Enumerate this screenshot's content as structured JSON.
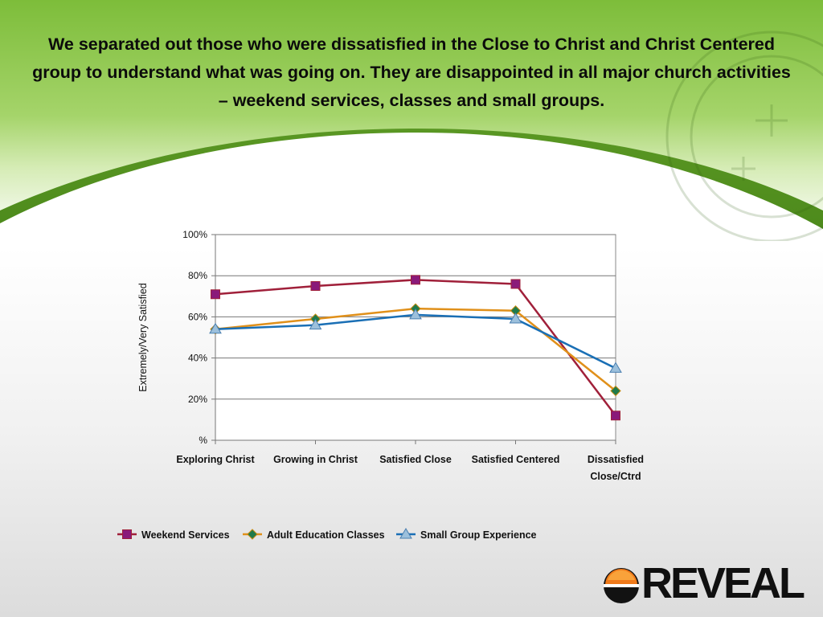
{
  "slide": {
    "title": "We separated out those who were dissatisfied in the Close to Christ and Christ Centered group to understand what was going on. They are disappointed in all major church activities – weekend services, classes and small groups.",
    "logo_text": "REVEAL",
    "colors": {
      "banner_green": "#7fbf3c",
      "banner_light": "#c8e6a0"
    }
  },
  "chart_data": {
    "type": "line",
    "categories": [
      "Exploring Christ",
      "Growing in Christ",
      "Satisfied Close",
      "Satisfied Centered",
      "Dissatisfied Close/Ctrd"
    ],
    "category_lines": [
      [
        "Exploring Christ"
      ],
      [
        "Growing in Christ"
      ],
      [
        "Satisfied Close"
      ],
      [
        "Satisfied Centered"
      ],
      [
        "Dissatisfied",
        "Close/Ctrd"
      ]
    ],
    "ylabel": "Extremely/Very Satisfied",
    "ylim": [
      0,
      100
    ],
    "yticks": [
      0,
      20,
      40,
      60,
      80,
      100
    ],
    "ytick_labels": [
      "%",
      "20%",
      "40%",
      "60%",
      "80%",
      "100%"
    ],
    "grid": true,
    "legend_position": "bottom",
    "series": [
      {
        "name": "Weekend Services",
        "values": [
          71,
          75,
          78,
          76,
          12
        ],
        "color": "#a0203a",
        "marker": "square",
        "marker_color": "#8a1a7a"
      },
      {
        "name": "Adult Education Classes",
        "values": [
          54,
          59,
          64,
          63,
          24
        ],
        "color": "#e0901a",
        "marker": "diamond",
        "marker_color": "#1f7a4a"
      },
      {
        "name": "Small Group Experience",
        "values": [
          54,
          56,
          61,
          59,
          35
        ],
        "color": "#1a6fb5",
        "marker": "triangle",
        "marker_color": "#9cc0dc"
      }
    ]
  }
}
